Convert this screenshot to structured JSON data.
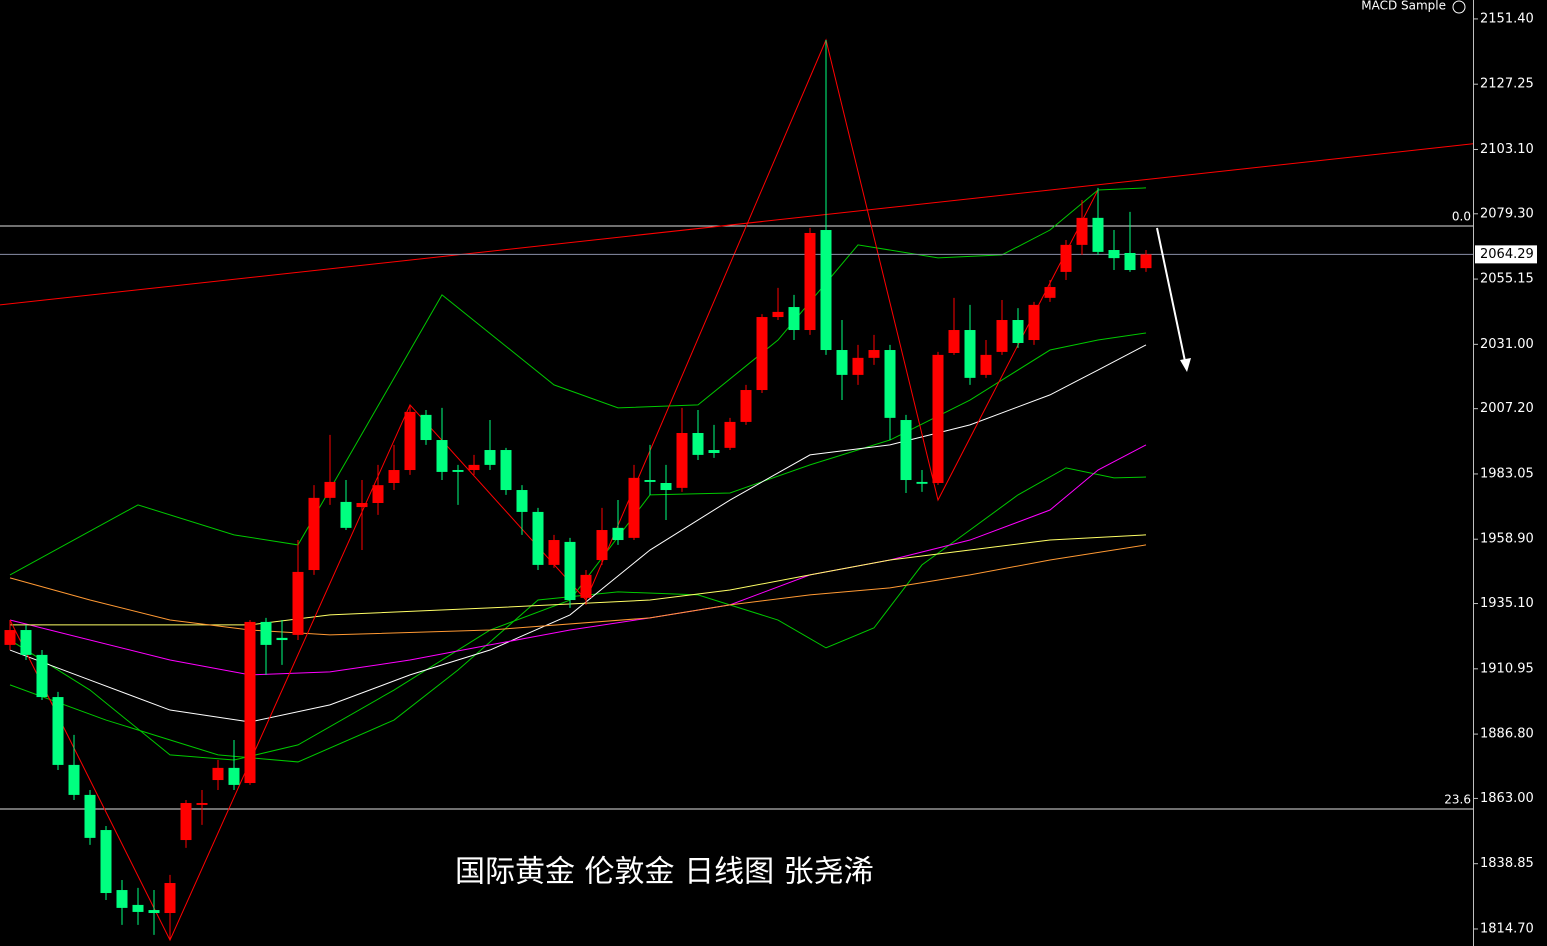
{
  "chart_data": {
    "type": "candlestick",
    "title": "国际黄金 伦敦金 日线图  张尧浠",
    "indicator_label": "MACD Sample",
    "up_color": "#ff0000",
    "down_color": "#00ff80",
    "ylim": [
      1808.4,
      2158.4
    ],
    "yticks": [
      {
        "value": 2151.4,
        "label": "2151.40"
      },
      {
        "value": 2127.25,
        "label": "2127.25"
      },
      {
        "value": 2103.1,
        "label": "2103.10"
      },
      {
        "value": 2079.3,
        "label": "2079.30"
      },
      {
        "value": 2055.15,
        "label": "2055.15"
      },
      {
        "value": 2031,
        "label": "2031.00"
      },
      {
        "value": 2007.2,
        "label": "2007.20"
      },
      {
        "value": 1983.05,
        "label": "1983.05"
      },
      {
        "value": 1958.9,
        "label": "1958.90"
      },
      {
        "value": 1935.1,
        "label": "1935.10"
      },
      {
        "value": 1910.95,
        "label": "1910.95"
      },
      {
        "value": 1886.8,
        "label": "1886.80"
      },
      {
        "value": 1863,
        "label": "1863.00"
      },
      {
        "value": 1838.85,
        "label": "1838.85"
      },
      {
        "value": 1814.7,
        "label": "1814.70"
      }
    ],
    "last_price": 2064.29,
    "open": [
      1919.8,
      1925.3,
      1916.1,
      1900.5,
      1875.4,
      1864.3,
      1851.3,
      1829.1,
      1823.6,
      1821.7,
      1820.6,
      1847.6,
      1860.6,
      1869.8,
      1874.3,
      1868.7,
      1928.3,
      1922.4,
      1923.5,
      1947.5,
      1974.2,
      1972.7,
      1970.8,
      1972.3,
      1979.7,
      1984.5,
      2004.9,
      1995.6,
      1984.5,
      1984.5,
      1991.9,
      1991.9,
      1977.1,
      1969.0,
      1949.4,
      1957.9,
      1937.2,
      1951.2,
      1963.1,
      1959.4,
      1980.8,
      1979.7,
      1977.9,
      1998.2,
      1991.9,
      1992.7,
      2002.3,
      2014.1,
      2041.1,
      2044.8,
      2036.3,
      2073.3,
      2028.9,
      2019.7,
      2026.0,
      2028.9,
      2003.0,
      1980.1,
      1979.7,
      2027.8,
      2036.3,
      2019.7,
      2028.2,
      2040.0,
      2032.6,
      2048.2,
      2057.8,
      2067.8,
      2077.8,
      2065.9,
      2064.8,
      2059.2
    ],
    "high": [
      1929.0,
      1927.2,
      1917.9,
      1902.4,
      1886.5,
      1866.1,
      1852.8,
      1832.8,
      1829.9,
      1829.1,
      1834.7,
      1862.4,
      1866.1,
      1877.2,
      1884.6,
      1929.0,
      1929.8,
      1929.0,
      1958.6,
      1978.9,
      1997.5,
      1980.8,
      1980.8,
      1986.4,
      1993.8,
      2008.6,
      2006.7,
      2007.5,
      1986.4,
      1990.1,
      2003.0,
      1992.7,
      1978.9,
      1970.5,
      1960.5,
      1959.4,
      1947.5,
      1970.5,
      1973.4,
      1986.4,
      1993.8,
      1986.4,
      2007.5,
      2006.7,
      2001.2,
      2003.8,
      2016.0,
      2042.2,
      2051.9,
      2049.3,
      2074.1,
      2143.6,
      2040.0,
      2030.8,
      2034.5,
      2030.8,
      2004.9,
      1984.5,
      2028.2,
      2048.2,
      2045.6,
      2032.6,
      2047.4,
      2044.4,
      2046.7,
      2054.8,
      2069.6,
      2084.4,
      2088.9,
      2073.3,
      2080.0,
      2065.9
    ],
    "low": [
      1917.9,
      1914.2,
      1899.4,
      1873.5,
      1862.4,
      1845.8,
      1825.4,
      1816.2,
      1816.2,
      1812.5,
      1810.6,
      1844.7,
      1853.2,
      1866.1,
      1866.1,
      1868.0,
      1908.7,
      1912.4,
      1921.6,
      1945.7,
      1971.6,
      1962.3,
      1954.9,
      1967.9,
      1977.1,
      1982.7,
      1993.8,
      1980.8,
      1971.6,
      1982.7,
      1984.5,
      1975.3,
      1960.5,
      1947.5,
      1948.3,
      1933.5,
      1934.6,
      1949.4,
      1956.8,
      1958.6,
      1975.3,
      1966.0,
      1976.4,
      1988.2,
      1989.0,
      1991.9,
      2001.2,
      2013.0,
      2040.0,
      2032.6,
      2034.5,
      2027.1,
      2010.4,
      2016.0,
      2023.4,
      1995.6,
      1976.0,
      1976.4,
      1979.0,
      2027.1,
      2016.0,
      2018.6,
      2027.1,
      2029.7,
      2030.8,
      2046.7,
      2054.8,
      2064.1,
      2064.1,
      2058.5,
      2057.8,
      2057.8
    ],
    "close": [
      1925.3,
      1916.1,
      1900.5,
      1875.4,
      1864.3,
      1848.4,
      1828.0,
      1822.5,
      1821.0,
      1820.6,
      1831.7,
      1861.3,
      1861.3,
      1874.3,
      1868.0,
      1928.3,
      1919.8,
      1921.6,
      1946.8,
      1974.2,
      1980.1,
      1963.1,
      1972.3,
      1978.9,
      1984.5,
      2006.0,
      1995.6,
      1983.8,
      1983.8,
      1986.4,
      1986.4,
      1977.1,
      1969.0,
      1949.4,
      1958.6,
      1936.4,
      1945.7,
      1962.3,
      1958.6,
      1981.6,
      1980.1,
      1977.1,
      1998.2,
      1990.1,
      1990.8,
      2002.3,
      2014.1,
      2041.1,
      2043.0,
      2036.3,
      2072.2,
      2028.9,
      2019.7,
      2026.0,
      2028.9,
      2003.8,
      1980.8,
      1979.4,
      2027.1,
      2036.3,
      2018.6,
      2027.1,
      2040.0,
      2031.5,
      2045.6,
      2052.2,
      2067.8,
      2077.8,
      2065.2,
      2062.9,
      2058.5,
      2064.29
    ],
    "lines": [
      {
        "color": "#00c800",
        "x": [
          0,
          8,
          14,
          18,
          27,
          34,
          38,
          43,
          48,
          53,
          58,
          62,
          65,
          68,
          71
        ],
        "values": [
          1945.7,
          1971.6,
          1960.5,
          1956.8,
          2049.3,
          2016.0,
          2007.5,
          2008.6,
          2032.6,
          2067.8,
          2063.0,
          2064.1,
          2073.3,
          2088.1,
          2088.9
        ]
      },
      {
        "color": "#00c800",
        "x": [
          0,
          5,
          10,
          14,
          18,
          24,
          30,
          35,
          40,
          45,
          50,
          55,
          60,
          65,
          68,
          71
        ],
        "values": [
          1921.6,
          1903.1,
          1879.1,
          1877.2,
          1882.8,
          1903.1,
          1925.3,
          1936.4,
          1975.3,
          1976.0,
          1986.4,
          1995.6,
          2010.4,
          2028.9,
          2032.6,
          2035.2
        ]
      },
      {
        "color": "#00c800",
        "x": [
          0,
          6,
          13,
          18,
          24,
          28,
          33,
          38,
          43,
          48,
          51,
          54,
          57,
          60,
          63,
          66,
          69,
          71
        ],
        "values": [
          1905.0,
          1892.0,
          1879.1,
          1876.5,
          1892.0,
          1910.5,
          1936.4,
          1939.4,
          1938.3,
          1929.0,
          1918.7,
          1926.1,
          1949.4,
          1962.3,
          1975.3,
          1985.3,
          1981.6,
          1981.9
        ]
      },
      {
        "color": "#ffffff",
        "x": [
          0,
          5,
          10,
          15,
          20,
          25,
          30,
          35,
          40,
          45,
          50,
          55,
          60,
          65,
          68,
          71
        ],
        "values": [
          1917.9,
          1906.8,
          1895.7,
          1891.3,
          1897.6,
          1908.7,
          1917.9,
          1930.9,
          1954.9,
          1973.4,
          1990.1,
          1993.8,
          2001.2,
          2012.3,
          2021.5,
          2030.8
        ]
      },
      {
        "color": "#ff00ff",
        "x": [
          0,
          10,
          15,
          20,
          25,
          30,
          35,
          40,
          45,
          50,
          55,
          60,
          65,
          68,
          71
        ],
        "values": [
          1929.0,
          1914.2,
          1908.7,
          1909.8,
          1914.2,
          1919.8,
          1925.3,
          1929.8,
          1934.6,
          1945.7,
          1951.2,
          1958.6,
          1969.7,
          1984.5,
          1993.8
        ]
      },
      {
        "color": "#ffff66",
        "x": [
          0,
          15,
          20,
          30,
          40,
          45,
          50,
          55,
          60,
          65,
          71
        ],
        "values": [
          1927.2,
          1927.2,
          1930.9,
          1933.5,
          1936.4,
          1940.1,
          1945.7,
          1951.2,
          1954.9,
          1958.6,
          1960.5
        ]
      },
      {
        "color": "#ff9933",
        "x": [
          0,
          5,
          10,
          15,
          20,
          30,
          40,
          45,
          50,
          55,
          60,
          65,
          71
        ],
        "values": [
          1944.6,
          1936.4,
          1929.0,
          1925.3,
          1923.5,
          1925.3,
          1929.8,
          1934.6,
          1938.3,
          1940.9,
          1945.7,
          1951.2,
          1956.8
        ]
      },
      {
        "color": "#ff0000",
        "x": [
          0,
          10,
          25,
          36,
          51,
          58,
          68
        ],
        "values": [
          1929.0,
          1810.6,
          2008.6,
          1936.4,
          2143.6,
          1973.4,
          2088.1
        ]
      }
    ],
    "trendline": {
      "color": "#ff0000",
      "values": [
        2045.6,
        2105.2
      ]
    },
    "fib_levels": [
      {
        "label": "0.0",
        "value": 2074.8
      },
      {
        "label": "23.6",
        "value": 1859.1
      }
    ]
  }
}
